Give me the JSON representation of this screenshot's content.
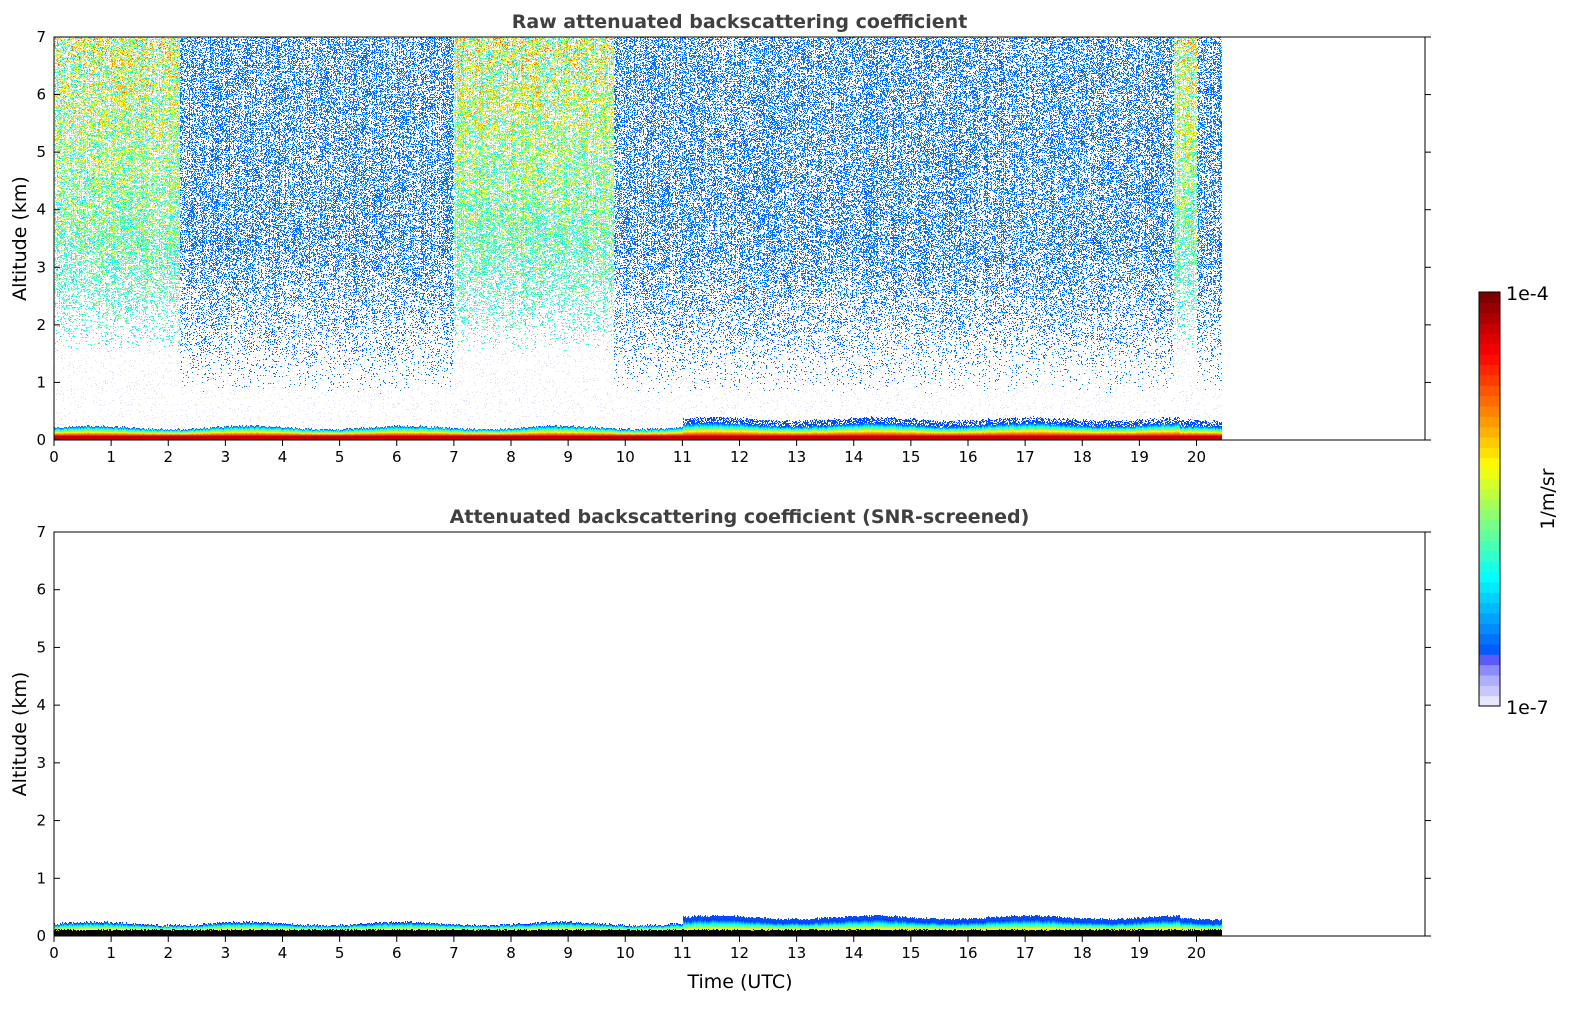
{
  "chart_data": {
    "type": "heatmap",
    "panels": [
      {
        "id": "raw",
        "title": "Raw attenuated backscattering coefficient",
        "xlabel": "",
        "ylabel": "Altitude (km)",
        "xlim": [
          0,
          24
        ],
        "ylim": [
          0,
          7
        ],
        "xticks": [
          "0",
          "1",
          "2",
          "3",
          "4",
          "5",
          "6",
          "7",
          "8",
          "9",
          "10",
          "11",
          "12",
          "13",
          "14",
          "15",
          "16",
          "17",
          "18",
          "19",
          "20"
        ],
        "yticks": [
          "0",
          "1",
          "2",
          "3",
          "4",
          "5",
          "6",
          "7"
        ],
        "data_time_range": [
          0,
          20.45
        ],
        "features": {
          "surface_layer_top_km": 0.25,
          "high_signal_periods_utc": [
            [
              0,
              2.2
            ],
            [
              7.0,
              9.8
            ],
            [
              19.6,
              20.0
            ]
          ],
          "noise": "scattered low values above 1 km"
        }
      },
      {
        "id": "screened",
        "title": "Attenuated backscattering coefficient (SNR-screened)",
        "xlabel": "Time (UTC)",
        "ylabel": "Altitude (km)",
        "xlim": [
          0,
          24
        ],
        "ylim": [
          0,
          7
        ],
        "xticks": [
          "0",
          "1",
          "2",
          "3",
          "4",
          "5",
          "6",
          "7",
          "8",
          "9",
          "10",
          "11",
          "12",
          "13",
          "14",
          "15",
          "16",
          "17",
          "18",
          "19",
          "20"
        ],
        "yticks": [
          "0",
          "1",
          "2",
          "3",
          "4",
          "5",
          "6",
          "7"
        ],
        "data_time_range": [
          0,
          20.45
        ],
        "features": {
          "surface_layer_top_km": 0.25,
          "noise": "removed"
        }
      }
    ],
    "colorbar": {
      "label": "1/m/sr",
      "min_label": "1e-7",
      "max_label": "1e-4",
      "range": [
        1e-07,
        0.0001
      ],
      "scale": "log",
      "colormap": "jet"
    }
  }
}
